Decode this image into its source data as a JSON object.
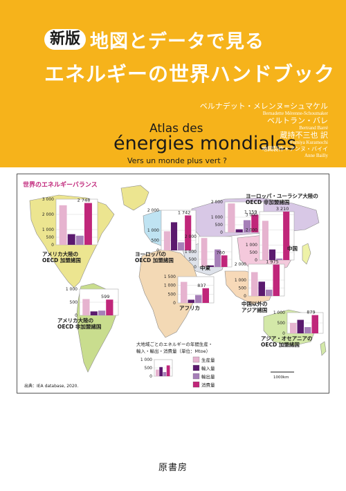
{
  "cover": {
    "background_color": "#f6b31b",
    "title": {
      "badge": "新版",
      "line1": "地図とデータで見る",
      "line2": "エネルギーの世界ハンドブック"
    },
    "french_title": {
      "line1": "Atlas des",
      "line2": "énergies mondiales",
      "line3": "Vers un monde plus vert ?"
    },
    "authors": [
      {
        "name": "ベルナデット・メレンヌ=シュマケル",
        "romanized": "Bernadette Mérenne-Schoumaker"
      },
      {
        "name": "ベルトラン・バレ",
        "romanized": "Bertrand Barré"
      }
    ],
    "translator": {
      "name": "蔵持不三也 訳",
      "romanized": "Fumiya Kuramochi"
    },
    "cartographer": {
      "name": "地図製作＊アンヌ・バイイ",
      "romanized": "Anne Bailly"
    },
    "publisher": "原書房"
  },
  "map": {
    "title": "世界のエネルギーバランス",
    "source": "出典：IEA database, 2020.",
    "scale_label": "1000km",
    "legend": {
      "caption_line1": "大地域ごとのエネルギーの年間生産・",
      "caption_line2": "輸入・輸出・消費量（単位：Mtoe）",
      "items": [
        "生産量",
        "輸入量",
        "輸出量",
        "消費量"
      ],
      "colors": [
        "#e6b3cf",
        "#5b1a6e",
        "#a67fb8",
        "#c0267a"
      ]
    }
  },
  "chart_data": {
    "type": "bar",
    "title": "世界のエネルギーバランス",
    "units": "Mtoe",
    "series_names": [
      "生産量",
      "輸入量",
      "輸出量",
      "消費量"
    ],
    "regions": [
      {
        "name_lines": [
          "アメリカ大陸の",
          "OECD 加盟諸国"
        ],
        "ticks": [
          "3 000",
          "2 000",
          "1 000",
          "500",
          "0"
        ],
        "label": "2 748",
        "values": [
          2600,
          700,
          600,
          2748
        ]
      },
      {
        "name_lines": [
          "アメリカ大陸の",
          "OECD 非加盟諸国"
        ],
        "ticks": [
          "1 000",
          "500",
          "0"
        ],
        "label": "599",
        "values": [
          620,
          150,
          180,
          599
        ]
      },
      {
        "name_lines": [
          "ヨーロッパの",
          "OECD 加盟諸国"
        ],
        "ticks": [
          "2 000",
          "1 000",
          "500",
          "0"
        ],
        "label": "1 742",
        "values": [
          950,
          1400,
          400,
          1742
        ]
      },
      {
        "name_lines": [
          "ヨーロッパ・ユーラシア大陸の",
          "OECD 非加盟諸国"
        ],
        "ticks": [
          "2 000",
          "1 000",
          "500",
          "0"
        ],
        "label": "1 159",
        "values": [
          1900,
          200,
          800,
          1159
        ]
      },
      {
        "name_lines": [
          "中東"
        ],
        "ticks": [
          "2 000",
          "1 000",
          "500",
          "0"
        ],
        "label": "760",
        "values": [
          1900,
          100,
          1150,
          760
        ]
      },
      {
        "name_lines": [
          "アフリカ"
        ],
        "ticks": [
          "1 500",
          "1 000",
          "500",
          "0"
        ],
        "label": "837",
        "values": [
          1200,
          180,
          450,
          837
        ]
      },
      {
        "name_lines": [
          "中国"
        ],
        "ticks": [
          "3 000",
          "2 000",
          "1 000",
          "500",
          "0"
        ],
        "label": "3 210",
        "values": [
          2600,
          700,
          100,
          3210
        ]
      },
      {
        "name_lines": [
          "中国以外の",
          "アジア諸国"
        ],
        "ticks": [
          "2 000",
          "1 000",
          "500",
          "0"
        ],
        "label": "1 975",
        "values": [
          1500,
          900,
          400,
          1975
        ]
      },
      {
        "name_lines": [
          "アジア・オセアニアの",
          "OECD 加盟諸国"
        ],
        "ticks": [
          "1 000",
          "500",
          "0"
        ],
        "label": "879",
        "values": [
          500,
          650,
          300,
          879
        ]
      }
    ],
    "legend_example": {
      "ticks": [
        "1 000",
        "500",
        "0"
      ],
      "values": [
        400,
        550,
        250,
        650
      ]
    }
  }
}
